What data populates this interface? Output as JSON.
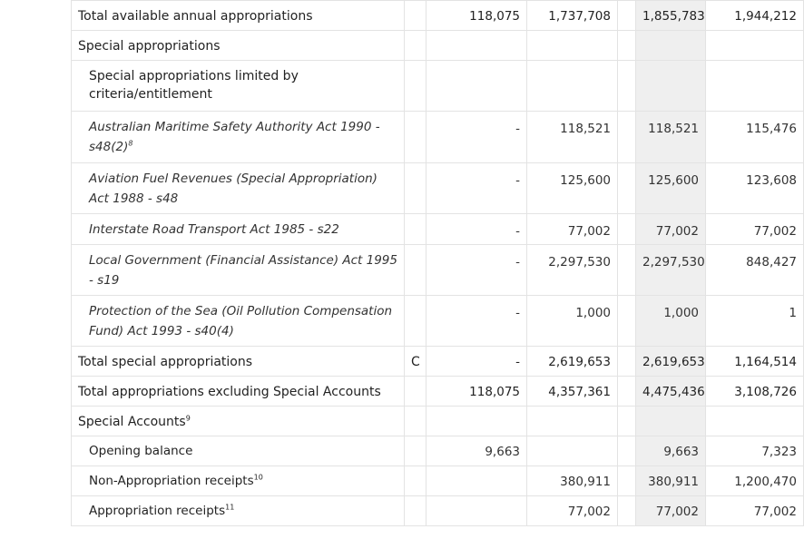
{
  "rows": [
    {
      "label": "Total available annual appropriations",
      "note": "",
      "a": "118,075",
      "b": "1,737,708",
      "d": "1,855,783",
      "e": "1,944,212"
    },
    {
      "label": "Special appropriations"
    },
    {
      "label": "Special appropriations limited by criteria/entitlement"
    },
    {
      "label": "Australian Maritime Safety Authority Act 1990 - s48(2)",
      "sup": "8",
      "a": "-",
      "b": "118,521",
      "d": "118,521",
      "e": "115,476"
    },
    {
      "label": "Aviation Fuel Revenues (Special Appropriation) Act 1988 - s48",
      "a": "-",
      "b": "125,600",
      "d": "125,600",
      "e": "123,608"
    },
    {
      "label": "Interstate Road Transport Act 1985 - s22",
      "a": "-",
      "b": "77,002",
      "d": "77,002",
      "e": "77,002"
    },
    {
      "label": "Local Government (Financial Assistance) Act 1995 - s19",
      "a": "-",
      "b": "2,297,530",
      "d": "2,297,530",
      "e": "848,427"
    },
    {
      "label": "Protection of the Sea (Oil Pollution Compensation Fund) Act 1993 - s40(4)",
      "a": "-",
      "b": "1,000",
      "d": "1,000",
      "e": "1"
    },
    {
      "label": "Total special appropriations",
      "note": "C",
      "a": "-",
      "b": "2,619,653",
      "d": "2,619,653",
      "e": "1,164,514"
    },
    {
      "label": "Total appropriations excluding Special Accounts",
      "a": "118,075",
      "b": "4,357,361",
      "d": "4,475,436",
      "e": "3,108,726"
    },
    {
      "label": "Special Accounts",
      "sup": "9"
    },
    {
      "label": "Opening balance",
      "a": "9,663",
      "b": "",
      "d": "9,663",
      "e": "7,323"
    },
    {
      "label": "Non-Appropriation receipts",
      "sup": "10",
      "a": "",
      "b": "380,911",
      "d": "380,911",
      "e": "1,200,470"
    },
    {
      "label": "Appropriation receipts",
      "sup": "11",
      "a": "",
      "b": "77,002",
      "d": "77,002",
      "e": "77,002"
    }
  ]
}
